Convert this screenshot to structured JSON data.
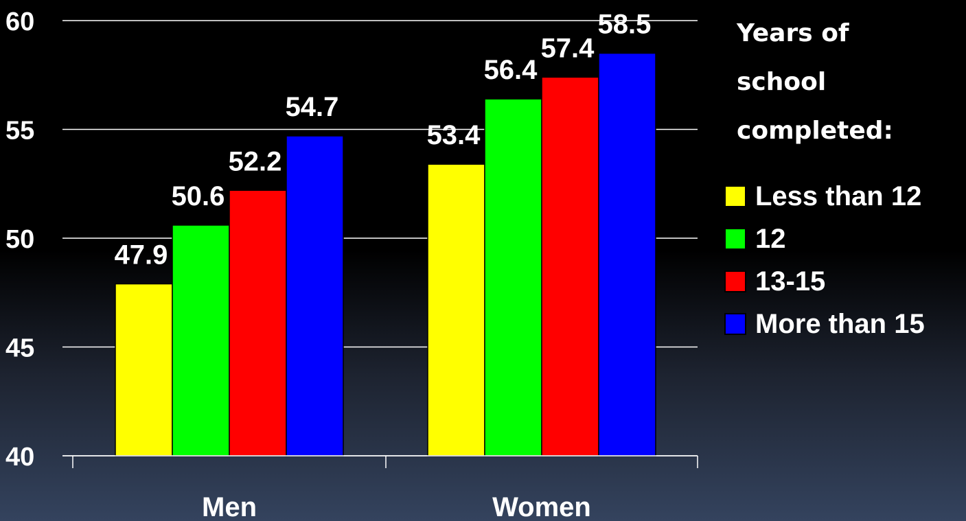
{
  "chart_data": {
    "type": "bar",
    "categories": [
      "Men",
      "Women"
    ],
    "series": [
      {
        "name": "Less than 12",
        "color": "#ffff00",
        "values": [
          47.9,
          53.4
        ]
      },
      {
        "name": "12",
        "color": "#00ff00",
        "values": [
          50.6,
          56.4
        ]
      },
      {
        "name": "13-15",
        "color": "#ff0000",
        "values": [
          52.2,
          57.4
        ]
      },
      {
        "name": "More than 15",
        "color": "#0000ff",
        "values": [
          54.7,
          58.5
        ]
      }
    ],
    "ylim": [
      40,
      60
    ],
    "yticks": [
      40,
      45,
      50,
      55,
      60
    ],
    "xlabel": "",
    "ylabel": "",
    "grid": true,
    "legend_title": "Years of\nschool\ncompleted:",
    "legend_position": "right",
    "data_labels": true
  },
  "colors": {
    "background_top": "#000000",
    "background_bottom": "#34435e",
    "text": "#ffffff",
    "gridline": "#ffffff"
  }
}
